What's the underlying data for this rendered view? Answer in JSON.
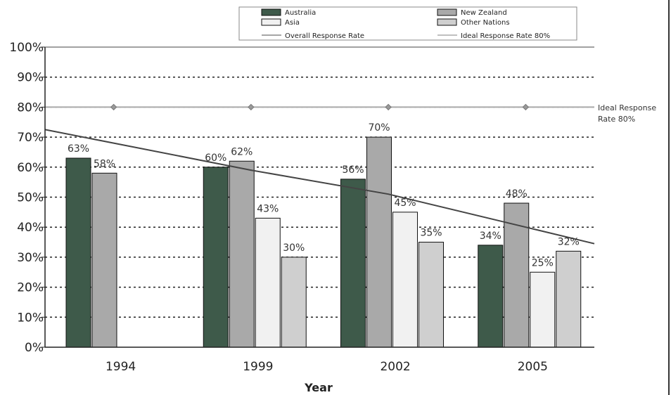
{
  "chart_data": {
    "type": "bar",
    "xlabel": "Year",
    "ylabel": "",
    "ylim": [
      0,
      100
    ],
    "y_ticks": [
      "0%",
      "10%",
      "20%",
      "30%",
      "40%",
      "50%",
      "60%",
      "70%",
      "80%",
      "90%",
      "100%"
    ],
    "grid": "horizontal dotted",
    "categories": [
      "1994",
      "1999",
      "2002",
      "2005"
    ],
    "series": [
      {
        "name": "Australia",
        "color": "#3e5a4a",
        "values": [
          63,
          60,
          56,
          34
        ],
        "labels": [
          "63%",
          "60%",
          "56%",
          "34%"
        ]
      },
      {
        "name": "New Zealand",
        "color": "#a9a9a9",
        "values": [
          58,
          62,
          70,
          48
        ],
        "labels": [
          "58%",
          "62%",
          "70%",
          "48%"
        ]
      },
      {
        "name": "Asia",
        "color": "#f1f1f1",
        "values": [
          null,
          43,
          45,
          25
        ],
        "labels": [
          "",
          "43%",
          "45%",
          "25%"
        ]
      },
      {
        "name": "Other Nations",
        "color": "#cfcfcf",
        "values": [
          null,
          30,
          35,
          32
        ],
        "labels": [
          "",
          "30%",
          "35%",
          "32%"
        ]
      }
    ],
    "lines": [
      {
        "name": "Overall Response Rate",
        "color": "#444444",
        "values": [
          68,
          59,
          51,
          40
        ]
      },
      {
        "name": "Ideal Response Rate 80%",
        "color": "#aaaaaa",
        "values": [
          80,
          80,
          80,
          80
        ]
      }
    ],
    "annotation": {
      "line1": "Ideal Response",
      "line2": "Rate 80%"
    },
    "legend_position": "top",
    "legend": [
      "Australia",
      "New Zealand",
      "Asia",
      "Other Nations",
      "Overall Response Rate",
      "Ideal Response Rate 80%"
    ]
  }
}
